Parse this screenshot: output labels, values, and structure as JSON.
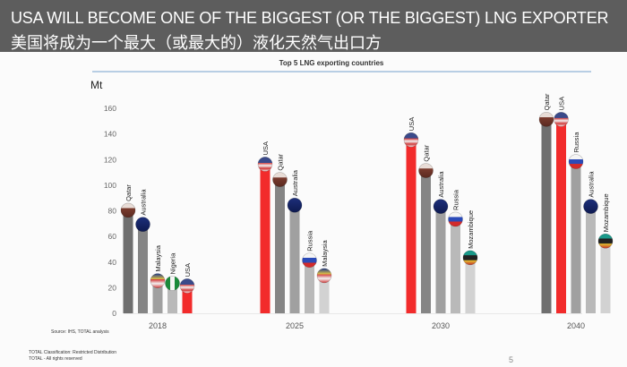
{
  "slide": {
    "title_en": "USA WILL BECOME ONE OF THE BIGGEST (OR THE BIGGEST) LNG EXPORTER",
    "title_zh": "美国将成为一个最大（或最大的）液化天然气出口方",
    "source": "Source: IHS, TOTAL analysis",
    "classification": "TOTAL Classification: Restricted Distribution",
    "rights": "TOTAL - All rights reserved",
    "page_number": "5"
  },
  "colors": {
    "header": "#5d5d5d",
    "usa": "#f22b2b",
    "rule": "#8fb3d6",
    "grays": [
      "#6f6f6f",
      "#858585",
      "#a0a0a0",
      "#b9b9b9",
      "#d2d2d2"
    ]
  },
  "chart_data": {
    "type": "bar",
    "title": "Top 5 LNG exporting countries",
    "ylabel": "Mt",
    "xlabel": "",
    "ylim": [
      0,
      160
    ],
    "yticks": [
      0,
      20,
      40,
      60,
      80,
      100,
      120,
      140,
      160
    ],
    "grid": false,
    "groups": [
      {
        "category": "2018",
        "bars": [
          {
            "country": "Qatar",
            "value": 79
          },
          {
            "country": "Australia",
            "value": 68
          },
          {
            "country": "Malaysia",
            "value": 24
          },
          {
            "country": "Nigeria",
            "value": 22
          },
          {
            "country": "USA",
            "value": 20
          }
        ]
      },
      {
        "category": "2025",
        "bars": [
          {
            "country": "USA",
            "value": 115
          },
          {
            "country": "Qatar",
            "value": 103
          },
          {
            "country": "Australia",
            "value": 83
          },
          {
            "country": "Russia",
            "value": 40
          },
          {
            "country": "Malaysia",
            "value": 28
          }
        ]
      },
      {
        "category": "2030",
        "bars": [
          {
            "country": "USA",
            "value": 134
          },
          {
            "country": "Qatar",
            "value": 110
          },
          {
            "country": "Australia",
            "value": 82
          },
          {
            "country": "Russia",
            "value": 72
          },
          {
            "country": "Mozambique",
            "value": 42
          }
        ]
      },
      {
        "category": "2040",
        "bars": [
          {
            "country": "Qatar",
            "value": 150
          },
          {
            "country": "USA",
            "value": 150
          },
          {
            "country": "Russia",
            "value": 117
          },
          {
            "country": "Australia",
            "value": 82
          },
          {
            "country": "Mozambique",
            "value": 55
          }
        ]
      }
    ]
  }
}
